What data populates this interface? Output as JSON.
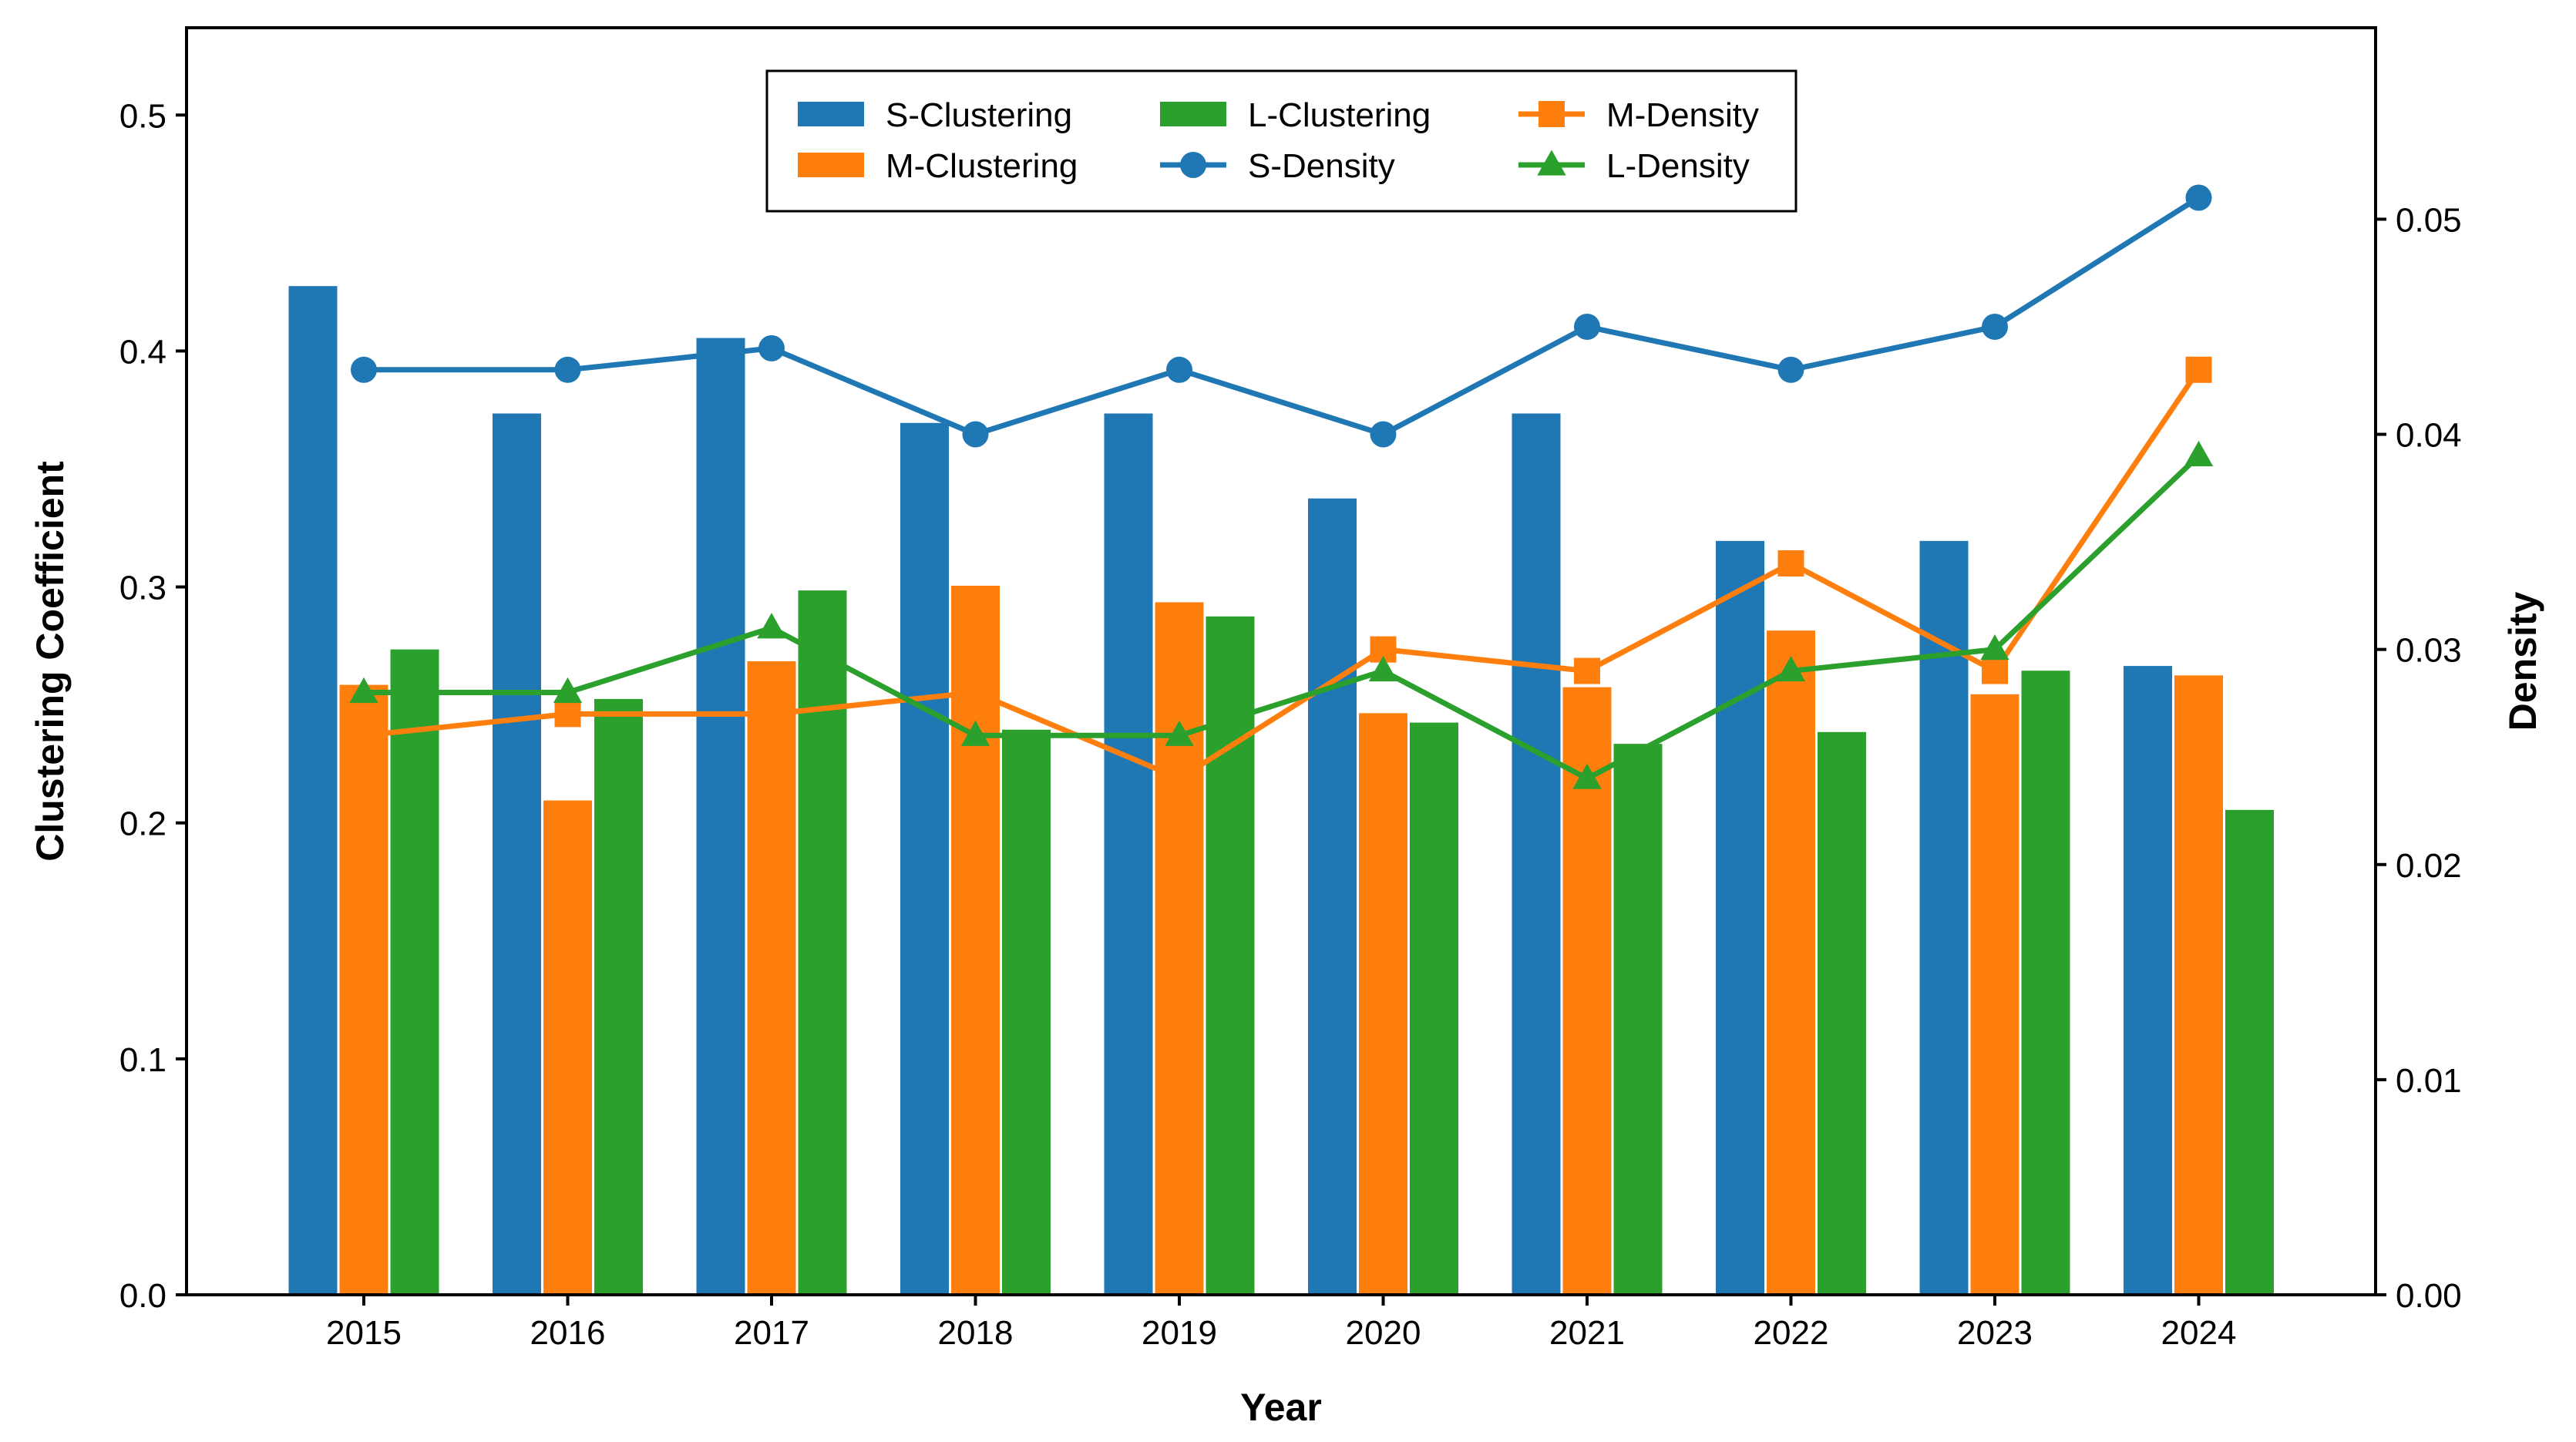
{
  "chart_data": {
    "type": "bar",
    "title": "",
    "xlabel": "Year",
    "ylabel": "Clustering Coefficient",
    "y2label": "Density",
    "categories": [
      "2015",
      "2016",
      "2017",
      "2018",
      "2019",
      "2020",
      "2021",
      "2022",
      "2023",
      "2024"
    ],
    "ylim": [
      0,
      0.537
    ],
    "y2lim": [
      0,
      0.0589
    ],
    "yticks": [
      "0.0",
      "0.1",
      "0.2",
      "0.3",
      "0.4",
      "0.5"
    ],
    "y2ticks": [
      "0.00",
      "0.01",
      "0.02",
      "0.03",
      "0.04",
      "0.05"
    ],
    "bar_series": [
      {
        "name": "S-Clustering",
        "color": "#1f77b4",
        "values": [
          0.428,
          0.374,
          0.406,
          0.37,
          0.374,
          0.338,
          0.374,
          0.32,
          0.32,
          0.267
        ]
      },
      {
        "name": "M-Clustering",
        "color": "#ff7f0e",
        "values": [
          0.259,
          0.21,
          0.269,
          0.301,
          0.294,
          0.247,
          0.258,
          0.282,
          0.255,
          0.263
        ]
      },
      {
        "name": "L-Clustering",
        "color": "#2ca02c",
        "values": [
          0.274,
          0.253,
          0.299,
          0.24,
          0.288,
          0.243,
          0.234,
          0.239,
          0.265,
          0.206
        ]
      }
    ],
    "line_series": [
      {
        "name": "S-Density",
        "color": "#1f77b4",
        "marker": "circle",
        "values": [
          0.043,
          0.043,
          0.044,
          0.04,
          0.043,
          0.04,
          0.045,
          0.043,
          0.045,
          0.051
        ]
      },
      {
        "name": "M-Density",
        "color": "#ff7f0e",
        "marker": "square",
        "values": [
          0.026,
          0.027,
          0.027,
          0.028,
          0.024,
          0.03,
          0.029,
          0.034,
          0.029,
          0.043
        ]
      },
      {
        "name": "L-Density",
        "color": "#2ca02c",
        "marker": "triangle",
        "values": [
          0.028,
          0.028,
          0.031,
          0.026,
          0.026,
          0.029,
          0.024,
          0.029,
          0.03,
          0.039
        ]
      }
    ],
    "legend": {
      "position": "top-center",
      "entries": [
        "S-Clustering",
        "L-Clustering",
        "M-Density",
        "M-Clustering",
        "S-Density",
        "L-Density"
      ]
    }
  }
}
